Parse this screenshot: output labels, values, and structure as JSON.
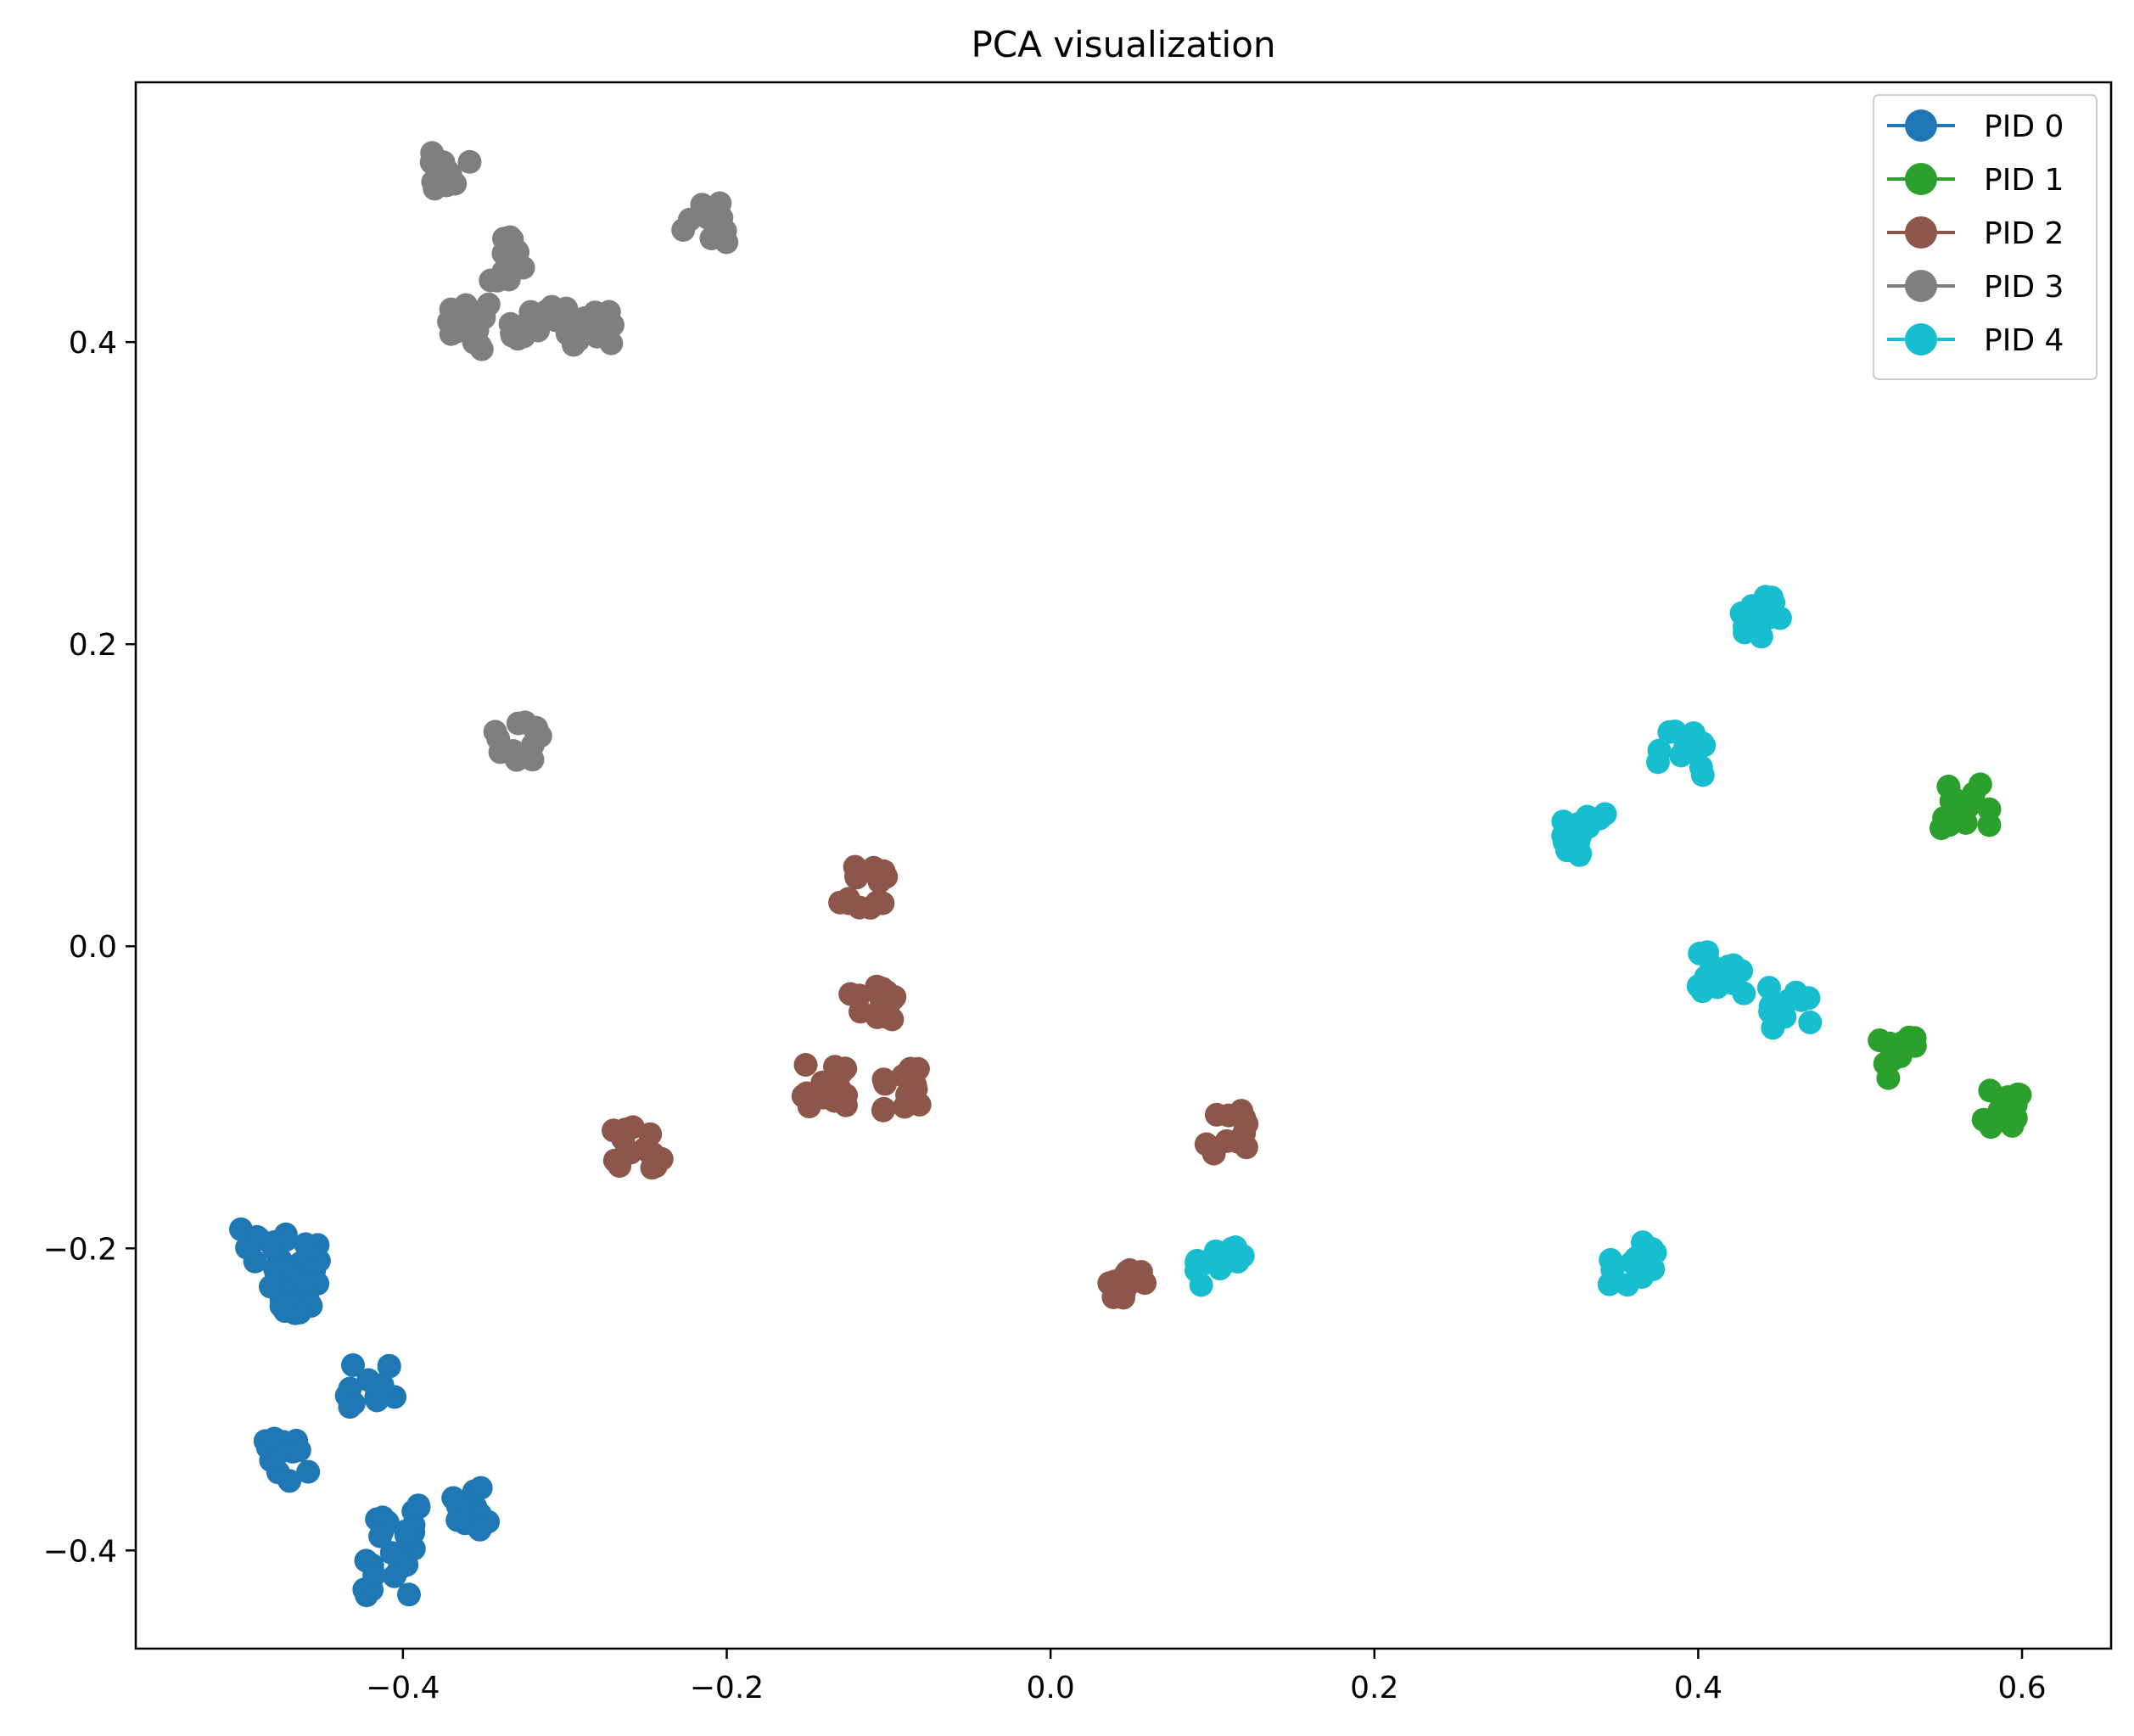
{
  "chart_data": {
    "type": "scatter",
    "title": "PCA visualization",
    "xlabel": "",
    "ylabel": "",
    "xlim": [
      -0.565,
      0.655
    ],
    "ylim": [
      -0.465,
      0.572
    ],
    "x_ticks": [
      -0.4,
      -0.2,
      0.0,
      0.2,
      0.4,
      0.6
    ],
    "x_tick_labels": [
      "−0.4",
      "−0.2",
      "0.0",
      "0.2",
      "0.4",
      "0.6"
    ],
    "y_ticks": [
      -0.4,
      -0.2,
      0.0,
      0.2,
      0.4
    ],
    "y_tick_labels": [
      "−0.4",
      "−0.2",
      "0.0",
      "0.2",
      "0.4"
    ],
    "grid": false,
    "legend_position": "top-right",
    "series": [
      {
        "name": "PID 0",
        "color": "#1f77b4",
        "clusters": [
          [
            -0.485,
            -0.2
          ],
          [
            -0.465,
            -0.21
          ],
          [
            -0.47,
            -0.235
          ],
          [
            -0.42,
            -0.29
          ],
          [
            -0.47,
            -0.34
          ],
          [
            -0.405,
            -0.385
          ],
          [
            -0.36,
            -0.372
          ],
          [
            -0.41,
            -0.415
          ]
        ]
      },
      {
        "name": "PID 1",
        "color": "#2ca02c",
        "clusters": [
          [
            0.565,
            0.093
          ],
          [
            0.52,
            -0.075
          ],
          [
            0.585,
            -0.107
          ]
        ]
      },
      {
        "name": "PID 2",
        "color": "#8c564b",
        "clusters": [
          [
            -0.115,
            0.04
          ],
          [
            -0.11,
            -0.035
          ],
          [
            -0.14,
            -0.092
          ],
          [
            -0.09,
            -0.095
          ],
          [
            -0.255,
            -0.132
          ],
          [
            0.11,
            -0.123
          ],
          [
            0.045,
            -0.225
          ]
        ]
      },
      {
        "name": "PID 3",
        "color": "#7f7f7f",
        "clusters": [
          [
            -0.37,
            0.515
          ],
          [
            -0.215,
            0.48
          ],
          [
            -0.34,
            0.455
          ],
          [
            -0.32,
            0.41
          ],
          [
            -0.285,
            0.412
          ],
          [
            -0.36,
            0.41
          ],
          [
            -0.33,
            0.138
          ]
        ]
      },
      {
        "name": "PID 4",
        "color": "#17becf",
        "clusters": [
          [
            0.44,
            0.22
          ],
          [
            0.39,
            0.128
          ],
          [
            0.33,
            0.075
          ],
          [
            0.415,
            -0.018
          ],
          [
            0.455,
            -0.04
          ],
          [
            0.105,
            -0.21
          ],
          [
            0.36,
            -0.21
          ]
        ]
      }
    ],
    "legend": [
      "PID 0",
      "PID 1",
      "PID 2",
      "PID 3",
      "PID 4"
    ]
  }
}
